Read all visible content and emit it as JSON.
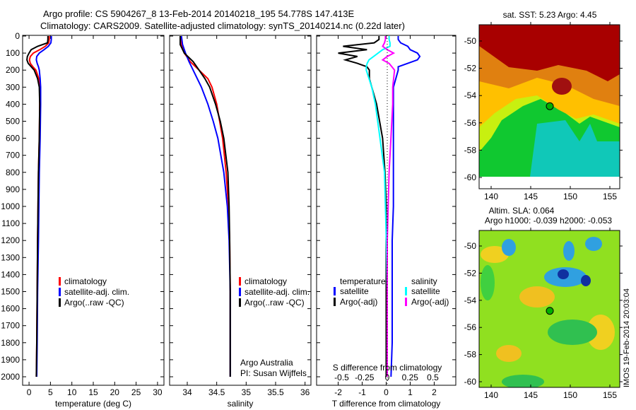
{
  "title": {
    "line1": "Argo profile: CS 5904267_8 13-Feb-2014 20140218_195 54.778S 147.413E",
    "line2": "Climatology: CARS2009. Satellite-adjusted climatology: synTS_20140214.nc (0.22d later)"
  },
  "stamp": "IMOS 19-Feb-2014 20:03:04",
  "colors": {
    "climatology": "#ff0000",
    "satellite": "#0000ff",
    "argo": "#000000",
    "sal_satellite": "#00ffff",
    "sal_argo": "#ff00ff"
  },
  "chart_data": [
    {
      "type": "line",
      "id": "temperature",
      "xlabel": "temperature (deg C)",
      "ylabel": "",
      "xlim": [
        -1.5,
        31.5
      ],
      "ylim": [
        2050,
        0
      ],
      "xticks": [
        0,
        5,
        10,
        15,
        20,
        25,
        30
      ],
      "yticks": [
        0,
        100,
        200,
        300,
        400,
        500,
        600,
        700,
        800,
        900,
        1000,
        1100,
        1200,
        1300,
        1400,
        1500,
        1600,
        1700,
        1800,
        1900,
        2000
      ],
      "depth": [
        0,
        20,
        40,
        60,
        80,
        100,
        120,
        140,
        160,
        180,
        200,
        250,
        300,
        400,
        600,
        800,
        1000,
        1200,
        1500,
        1800,
        2000
      ],
      "series": [
        {
          "name": "climatology",
          "values": [
            4.7,
            4.7,
            4.6,
            3.8,
            2.5,
            1.0,
            0.3,
            0.1,
            0.3,
            0.9,
            1.6,
            2.3,
            2.5,
            2.5,
            2.4,
            2.2,
            2.1,
            2.0,
            1.9,
            1.8,
            1.7
          ]
        },
        {
          "name": "satellite-adj. clim.",
          "values": [
            5.2,
            5.2,
            5.1,
            4.5,
            3.5,
            2.4,
            1.8,
            1.7,
            1.9,
            2.2,
            2.4,
            2.6,
            2.7,
            2.7,
            2.6,
            2.4,
            2.3,
            2.2,
            2.0,
            1.9,
            1.8
          ]
        },
        {
          "name": "Argo(..raw -QC)",
          "values": [
            4.4,
            4.4,
            4.3,
            2.0,
            0.5,
            0.0,
            -0.4,
            -0.5,
            -0.2,
            0.5,
            1.2,
            2.0,
            2.4,
            2.5,
            2.4,
            2.2,
            2.1,
            2.0,
            1.9,
            1.8,
            1.7
          ]
        }
      ],
      "legend": [
        "climatology",
        "satellite-adj. clim.",
        "Argo(..raw -QC)"
      ]
    },
    {
      "type": "line",
      "id": "salinity",
      "xlabel": "salinity",
      "xlim": [
        33.7,
        36.1
      ],
      "ylim": [
        2050,
        0
      ],
      "xticks": [
        34,
        34.5,
        35,
        35.5,
        36
      ],
      "depth": [
        0,
        50,
        100,
        150,
        200,
        250,
        300,
        400,
        500,
        600,
        800,
        1000,
        1200,
        1500,
        1800,
        2000
      ],
      "series": [
        {
          "name": "climatology",
          "values": [
            33.88,
            33.9,
            33.95,
            34.05,
            34.2,
            34.35,
            34.42,
            34.5,
            34.55,
            34.6,
            34.66,
            34.7,
            34.72,
            34.73,
            34.73,
            34.73
          ]
        },
        {
          "name": "satellite-adj. clim.",
          "values": [
            33.9,
            33.92,
            33.97,
            34.03,
            34.1,
            34.17,
            34.24,
            34.35,
            34.44,
            34.52,
            34.62,
            34.68,
            34.71,
            34.73,
            34.73,
            34.73
          ]
        },
        {
          "name": "Argo(..raw -QC)",
          "values": [
            33.88,
            33.88,
            33.95,
            34.1,
            34.2,
            34.3,
            34.38,
            34.48,
            34.56,
            34.62,
            34.69,
            34.71,
            34.72,
            34.73,
            34.73,
            34.73
          ]
        }
      ],
      "legend": [
        "climatology",
        "satellite-adj. clim.",
        "Argo(..raw -QC)"
      ],
      "annotation": [
        "Argo Australia",
        "PI: Susan Wijffels"
      ]
    },
    {
      "type": "line",
      "id": "difference",
      "xlabel": "T difference from climatology",
      "xlabel2": "S difference from climatology",
      "xlim": [
        -2.9,
        2.9
      ],
      "ylim": [
        2050,
        0
      ],
      "xticks": [
        -2,
        -1,
        0,
        1,
        2
      ],
      "xticks2": [
        -0.5,
        -0.25,
        0,
        0.25,
        0.5
      ],
      "depth": [
        0,
        20,
        40,
        60,
        80,
        100,
        120,
        140,
        160,
        180,
        200,
        250,
        300,
        400,
        600,
        800,
        1000,
        1200,
        1500,
        1800,
        2000
      ],
      "series": [
        {
          "name": "temperature satellite",
          "values": [
            0.5,
            0.5,
            0.6,
            0.9,
            1.0,
            1.3,
            1.4,
            1.3,
            0.9,
            0.5,
            0.5,
            0.4,
            0.3,
            0.3,
            0.3,
            0.3,
            0.3,
            0.25,
            0.25,
            0.25,
            0.2
          ]
        },
        {
          "name": "temperature Argo(-adj)",
          "values": [
            -0.3,
            -0.3,
            -0.5,
            -1.8,
            -0.8,
            -2.0,
            -1.2,
            -1.7,
            -1.2,
            -0.8,
            -0.7,
            -0.7,
            -0.6,
            -0.4,
            -0.15,
            -0.05,
            0.0,
            0.0,
            0.0,
            0.0,
            0.0
          ]
        },
        {
          "name": "salinity satellite",
          "values": [
            0.02,
            0.02,
            0.03,
            0.03,
            -0.05,
            -0.1,
            -0.15,
            -0.2,
            -0.22,
            -0.23,
            -0.23,
            -0.2,
            -0.17,
            -0.13,
            -0.08,
            -0.03,
            -0.02,
            -0.01,
            0.0,
            0.0,
            0.0
          ]
        },
        {
          "name": "salinity Argo(-adj)",
          "values": [
            -0.02,
            -0.02,
            -0.03,
            -0.05,
            0.0,
            0.07,
            0.0,
            -0.05,
            0.02,
            0.05,
            0.08,
            0.07,
            0.06,
            0.06,
            0.04,
            0.02,
            0.01,
            0.0,
            0.0,
            0.0,
            0.0
          ]
        }
      ],
      "legend": {
        "temperature_title": "temperature",
        "salinity_title": "salinity",
        "satellite": "satellite",
        "argo": "Argo(-adj)"
      }
    },
    {
      "type": "heatmap",
      "id": "sst-map",
      "title": "sat. SST: 5.23 Argo: 4.45",
      "xlim": [
        138.5,
        156.2
      ],
      "ylim": [
        -60.8,
        -48.9
      ],
      "xticks": [
        140,
        145,
        150,
        155
      ],
      "yticks": [
        -50,
        -52,
        -54,
        -56,
        -58,
        -60
      ],
      "marker": {
        "lon": 147.413,
        "lat": -54.778
      }
    },
    {
      "type": "heatmap",
      "id": "sla-map",
      "title": "Altim. SLA: 0.064",
      "subtitle": "Argo h1000: -0.039 h2000: -0.053",
      "xlim": [
        138.5,
        156.2
      ],
      "ylim": [
        -60.2,
        -48.9
      ],
      "xticks": [
        140,
        145,
        150,
        155
      ],
      "yticks": [
        -50,
        -52,
        -54,
        -56,
        -58,
        -60
      ],
      "marker": {
        "lon": 147.413,
        "lat": -54.778
      }
    }
  ]
}
